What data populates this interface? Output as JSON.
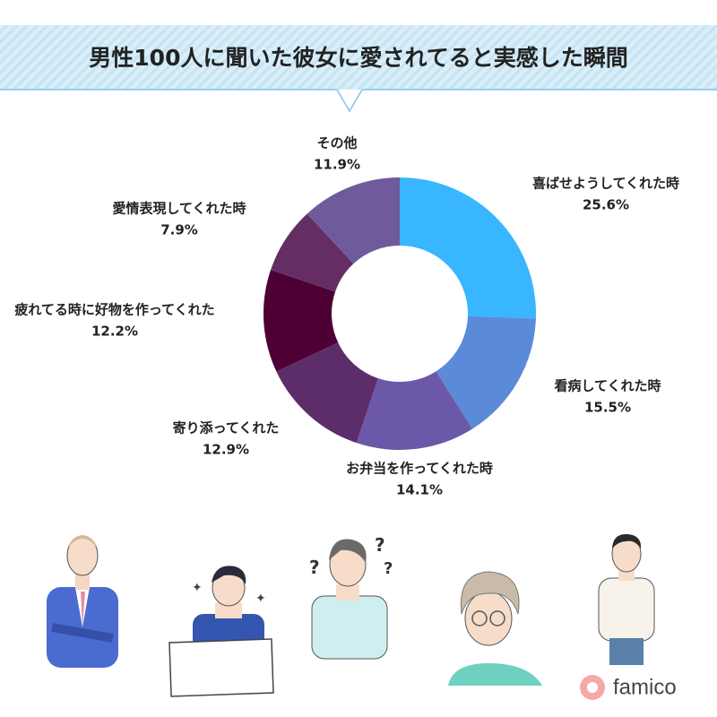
{
  "chart_data": {
    "type": "pie",
    "donut": true,
    "title": "男性100人に聞いた彼女に愛されてると実感した瞬間",
    "categories": [
      "喜ばせようしてくれた時",
      "看病してくれた時",
      "お弁当を作ってくれた時",
      "寄り添ってくれた",
      "疲れてる時に好物を作ってくれた",
      "愛情表現してくれた時",
      "その他"
    ],
    "values": [
      25.6,
      15.5,
      14.1,
      12.9,
      12.2,
      7.9,
      11.9
    ],
    "value_labels": [
      "25.6%",
      "15.5%",
      "14.1%",
      "12.9%",
      "12.2%",
      "7.9%",
      "11.9%"
    ],
    "colors": [
      "#38b6ff",
      "#5b8ad8",
      "#6b58a8",
      "#5d2d6a",
      "#4e0035",
      "#642e64",
      "#6f5b9c"
    ]
  },
  "logo": "famico"
}
